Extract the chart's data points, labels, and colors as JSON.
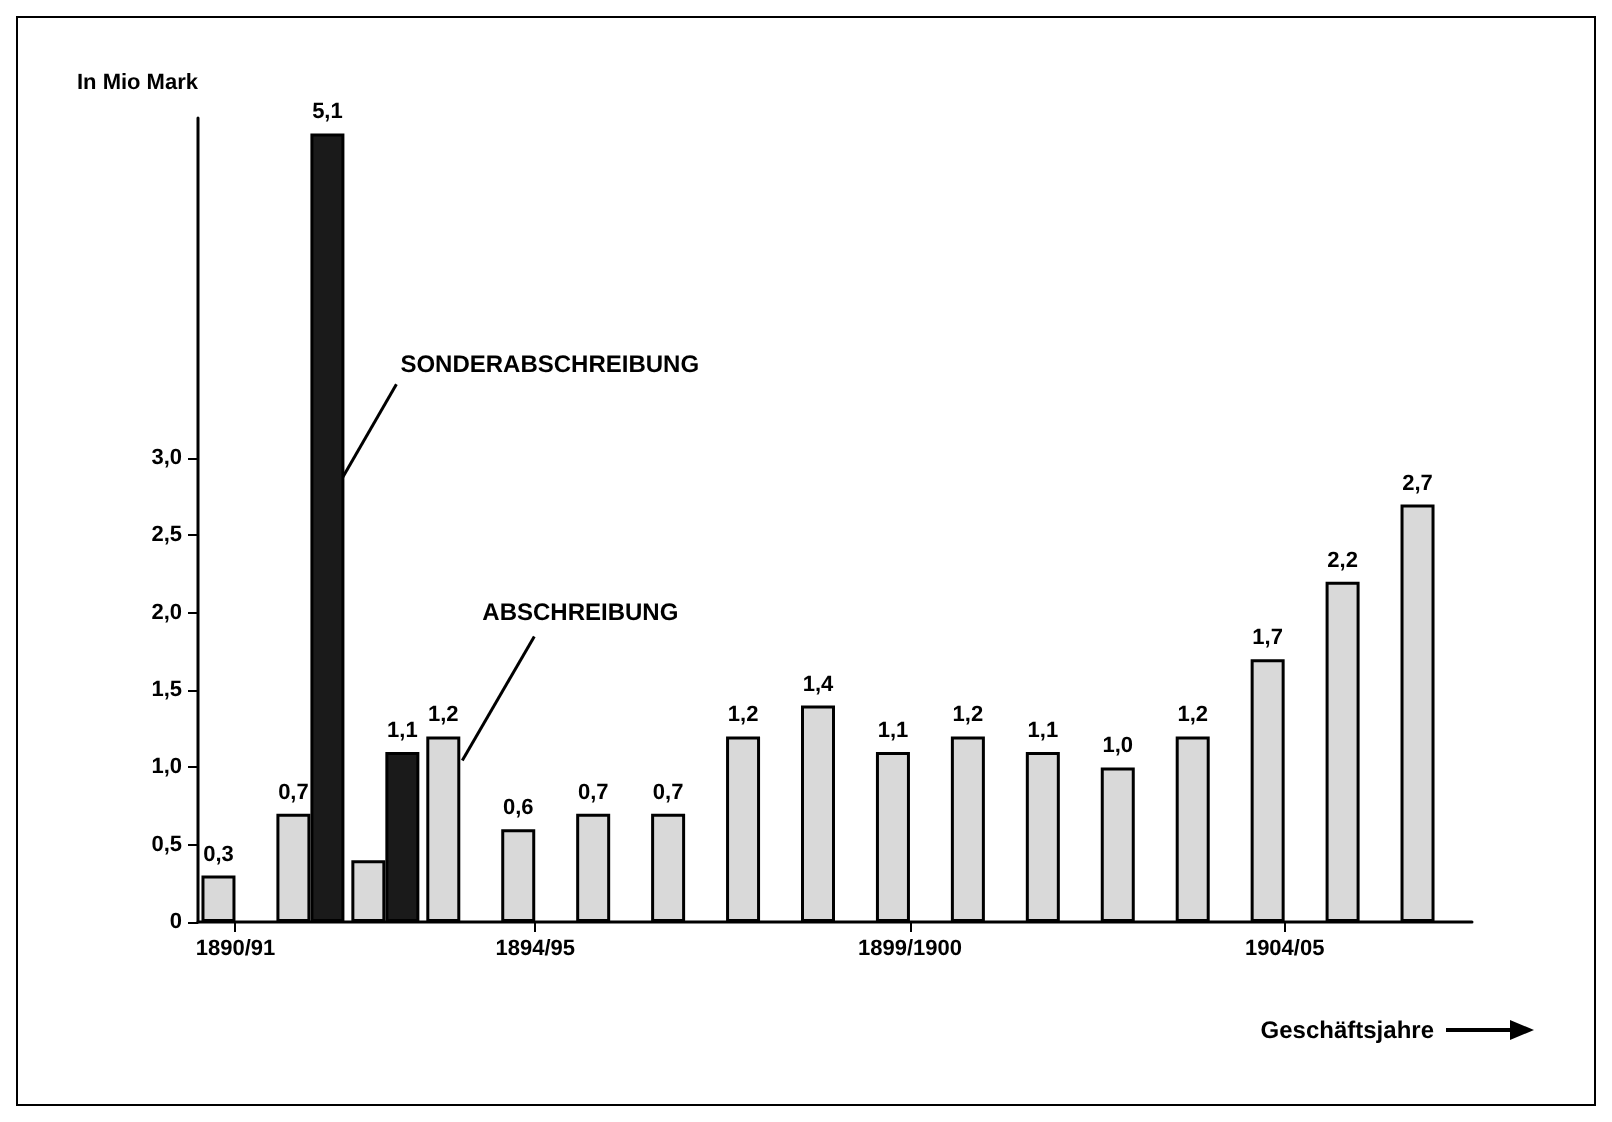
{
  "chart_data": {
    "type": "bar",
    "ylabel": "In Mio Mark",
    "xlabel": "Geschäftsjahre",
    "categories": [
      "1890/91",
      null,
      null,
      null,
      "1894/95",
      null,
      null,
      null,
      null,
      "1899/1900",
      null,
      null,
      null,
      null,
      "1904/05",
      null,
      null
    ],
    "series": [
      {
        "name": "ABSCHREIBUNG",
        "color": "#d9d9d9",
        "values": [
          0.3,
          0.7,
          0.4,
          1.2,
          0.6,
          0.7,
          0.7,
          1.2,
          1.4,
          1.1,
          1.2,
          1.1,
          1.0,
          1.2,
          1.7,
          2.2,
          2.7
        ],
        "value_labels": [
          "0,3",
          "0,7",
          null,
          "1,2",
          "0,6",
          "0,7",
          "0,7",
          "1,2",
          "1,4",
          "1,1",
          "1,2",
          "1,1",
          "1,0",
          "1,2",
          "1,7",
          "2,2",
          "2,7"
        ]
      },
      {
        "name": "SONDERABSCHREIBUNG",
        "color": "#1a1a1a",
        "values": [
          null,
          5.1,
          1.1,
          null,
          null,
          null,
          null,
          null,
          null,
          null,
          null,
          null,
          null,
          null,
          null,
          null,
          null
        ],
        "value_labels": [
          null,
          "5,1",
          "1,1",
          null,
          null,
          null,
          null,
          null,
          null,
          null,
          null,
          null,
          null,
          null,
          null,
          null,
          null
        ]
      }
    ],
    "ylim": [
      0,
      5.2
    ],
    "yticks": [
      0,
      {
        "value": 0.5,
        "label": "0,5"
      },
      {
        "value": 1.0,
        "label": "1,0"
      },
      {
        "value": 1.5,
        "label": "1,5"
      },
      {
        "value": 2.0,
        "label": "2,0"
      },
      {
        "value": 2.5,
        "label": "2,5"
      },
      {
        "value": 3.0,
        "label": "3,0"
      }
    ],
    "grid": false,
    "legend": false
  }
}
